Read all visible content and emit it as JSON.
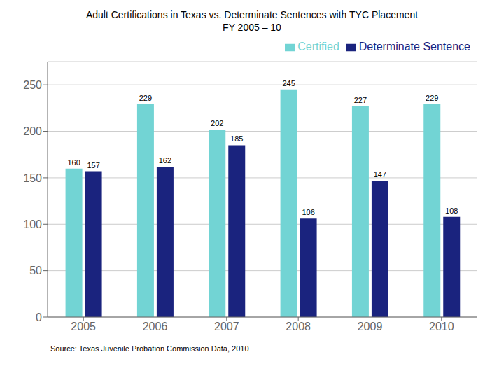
{
  "chart_data": {
    "type": "bar",
    "title": "Adult Certifications in Texas vs. Determinate Sentences with TYC Placement",
    "subtitle": "FY 2005 – 10",
    "categories": [
      "2005",
      "2006",
      "2007",
      "2008",
      "2009",
      "2010"
    ],
    "series": [
      {
        "name": "Certified",
        "color": "#72d4d4",
        "values": [
          160,
          229,
          202,
          245,
          227,
          229
        ]
      },
      {
        "name": "Determinate Sentence",
        "color": "#1a237e",
        "values": [
          157,
          162,
          185,
          106,
          147,
          108
        ]
      }
    ],
    "ylim": [
      0,
      275
    ],
    "yticks": [
      0,
      50,
      100,
      150,
      200,
      250
    ],
    "grid": true,
    "legend": "upper right",
    "data_labels": true,
    "annotations": [
      "Source: Texas Juvenile Probation Commission Data, 2010"
    ]
  }
}
